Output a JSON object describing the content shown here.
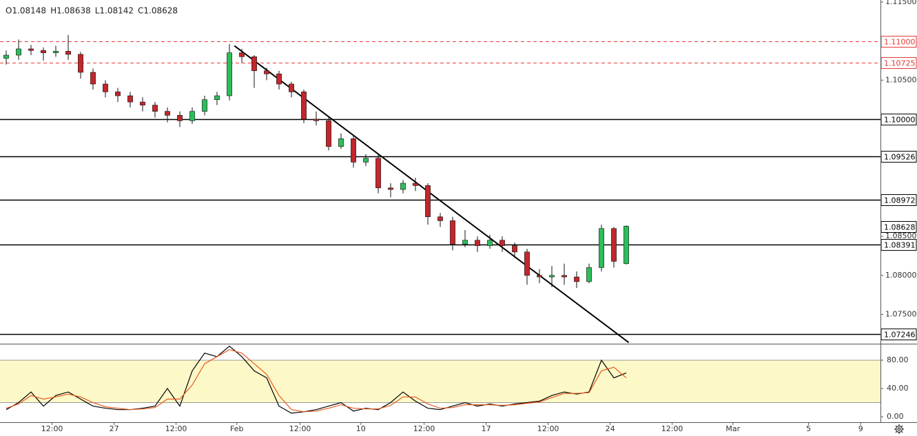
{
  "chart_data": [
    {
      "type": "candlestick",
      "ohlc_labels": [
        "O1.08148",
        "H1.08638",
        "L1.08142",
        "C1.08628"
      ],
      "up_color": "#2ebd5b",
      "down_color": "#c1272d",
      "x": [
        0.5,
        1.5,
        2.5,
        3.5,
        4.5,
        5.5,
        6.5,
        7.5,
        8.5,
        9.5,
        10.5,
        11.5,
        12.5,
        13.5,
        14.5,
        15.5,
        16.5,
        17.5,
        18.5,
        19.5,
        20.5,
        21.5,
        22.5,
        23.5,
        24.5,
        25.5,
        26.5,
        27.5,
        28.5,
        29.5,
        30.5,
        31.5,
        32.5,
        33.5,
        34.5,
        35.5,
        36.5,
        37.5,
        38.5,
        39.5,
        40.5,
        41.5,
        42.5,
        43.5,
        44.5,
        45.5,
        46.5,
        47.5,
        48.5,
        49.5,
        50.5
      ],
      "open": [
        1.1078,
        1.1082,
        1.109,
        1.1088,
        1.1085,
        1.1087,
        1.1083,
        1.106,
        1.1045,
        1.1035,
        1.103,
        1.1022,
        1.1018,
        1.101,
        1.1005,
        1.0998,
        1.101,
        1.1025,
        1.103,
        1.1085,
        1.108,
        1.1062,
        1.1058,
        1.1045,
        1.1035,
        1.1,
        1.0998,
        1.0965,
        1.0975,
        1.0945,
        1.095,
        1.0912,
        1.091,
        1.0918,
        1.0915,
        1.0875,
        1.087,
        1.084,
        1.0845,
        1.0838,
        1.0845,
        1.0838,
        1.083,
        1.08,
        1.0798,
        1.08,
        1.0798,
        1.0792,
        1.081,
        1.086,
        1.0815
      ],
      "high": [
        1.1088,
        1.1102,
        1.1095,
        1.1092,
        1.1094,
        1.1108,
        1.1086,
        1.1065,
        1.105,
        1.104,
        1.1035,
        1.1028,
        1.1022,
        1.1015,
        1.101,
        1.1015,
        1.103,
        1.1035,
        1.1096,
        1.109,
        1.1082,
        1.1066,
        1.1062,
        1.1048,
        1.1038,
        1.101,
        1.1002,
        1.0982,
        1.098,
        1.0955,
        1.0955,
        1.0918,
        1.0922,
        1.0925,
        1.0918,
        1.088,
        1.0875,
        1.0858,
        1.085,
        1.0852,
        1.085,
        1.0842,
        1.0834,
        1.0808,
        1.0812,
        1.0815,
        1.0805,
        1.0815,
        1.0865,
        1.0862,
        1.0864
      ],
      "low": [
        1.107,
        1.1076,
        1.1082,
        1.1075,
        1.108,
        1.1076,
        1.1052,
        1.1038,
        1.1028,
        1.1022,
        1.1015,
        1.101,
        1.1002,
        1.0996,
        1.099,
        1.0994,
        1.1005,
        1.1018,
        1.1024,
        1.1072,
        1.104,
        1.105,
        1.1038,
        1.1028,
        1.0995,
        1.0992,
        1.096,
        1.0962,
        1.0938,
        1.094,
        1.0905,
        1.09,
        1.0905,
        1.0908,
        1.0865,
        1.0862,
        1.0832,
        1.0836,
        1.083,
        1.0834,
        1.083,
        1.0822,
        1.0788,
        1.079,
        1.0785,
        1.0788,
        1.0784,
        1.079,
        1.0805,
        1.081,
        1.0814
      ],
      "close": [
        1.1082,
        1.109,
        1.1088,
        1.1085,
        1.1087,
        1.1083,
        1.106,
        1.1045,
        1.1035,
        1.103,
        1.1022,
        1.1018,
        1.101,
        1.1005,
        1.0998,
        1.101,
        1.1025,
        1.103,
        1.1085,
        1.108,
        1.1062,
        1.1058,
        1.1045,
        1.1035,
        1.1,
        1.0998,
        1.0965,
        1.0975,
        1.0945,
        1.095,
        1.0912,
        1.091,
        1.0918,
        1.0915,
        1.0875,
        1.087,
        1.084,
        1.0845,
        1.0838,
        1.0845,
        1.0838,
        1.083,
        1.08,
        1.0798,
        1.08,
        1.0798,
        1.0792,
        1.081,
        1.086,
        1.0818,
        1.0863
      ],
      "xlim": [
        0,
        71
      ],
      "xticks": [
        {
          "value": 4.2,
          "label": "12:00"
        },
        {
          "value": 9.2,
          "label": "27"
        },
        {
          "value": 14.2,
          "label": "12:00"
        },
        {
          "value": 19.1,
          "label": "Feb"
        },
        {
          "value": 24.2,
          "label": "12:00"
        },
        {
          "value": 29.1,
          "label": "10"
        },
        {
          "value": 34.2,
          "label": "12:00"
        },
        {
          "value": 39.2,
          "label": "17"
        },
        {
          "value": 44.2,
          "label": "12:00"
        },
        {
          "value": 49.2,
          "label": "24"
        },
        {
          "value": 54.2,
          "label": "12:00"
        },
        {
          "value": 59.1,
          "label": "Mar"
        },
        {
          "value": 65.2,
          "label": "5"
        },
        {
          "value": 69.4,
          "label": "9"
        }
      ],
      "ylim": [
        1.07134,
        1.11526
      ],
      "yticks": [
        {
          "value": 1.115,
          "label": "1.11500"
        },
        {
          "value": 1.105,
          "label": "1.10500"
        },
        {
          "value": 1.085,
          "label": "1.08500"
        },
        {
          "value": 1.08,
          "label": "1.08000"
        },
        {
          "value": 1.075,
          "label": "1.07500"
        }
      ],
      "levels": [
        {
          "value": 1.11,
          "label": "1.11000",
          "color": "#e53935",
          "style": "dashed"
        },
        {
          "value": 1.10725,
          "label": "1.10725",
          "color": "#e53935",
          "style": "dashed"
        },
        {
          "value": 1.1,
          "label": "1.10000",
          "color": "#000000",
          "style": "solid"
        },
        {
          "value": 1.09526,
          "label": "1.09526",
          "color": "#000000",
          "style": "solid"
        },
        {
          "value": 1.08972,
          "label": "1.08972",
          "color": "#000000",
          "style": "solid"
        },
        {
          "value": 1.08391,
          "label": "1.08391",
          "color": "#000000",
          "style": "solid"
        },
        {
          "value": 1.07246,
          "label": "1.07246",
          "color": "#000000",
          "style": "solid"
        }
      ],
      "last_price": {
        "value": 1.08628,
        "label": "1.08628"
      },
      "trendline": {
        "x": [
          18.9,
          50.7
        ],
        "y": [
          1.1094,
          1.0714
        ],
        "color": "#000000"
      }
    },
    {
      "type": "stochastic",
      "x": [
        0.5,
        1.5,
        2.5,
        3.5,
        4.5,
        5.5,
        6.5,
        7.5,
        8.5,
        9.5,
        10.5,
        11.5,
        12.5,
        13.5,
        14.5,
        15.5,
        16.5,
        17.5,
        18.5,
        19.5,
        20.5,
        21.5,
        22.5,
        23.5,
        24.5,
        25.5,
        26.5,
        27.5,
        28.5,
        29.5,
        30.5,
        31.5,
        32.5,
        33.5,
        34.5,
        35.5,
        36.5,
        37.5,
        38.5,
        39.5,
        40.5,
        41.5,
        42.5,
        43.5,
        44.5,
        45.5,
        46.5,
        47.5,
        48.5,
        49.5,
        50.5
      ],
      "series": [
        {
          "color": "#000000",
          "values": [
            10,
            20,
            35,
            15,
            30,
            35,
            25,
            15,
            12,
            10,
            10,
            12,
            15,
            40,
            15,
            65,
            90,
            85,
            100,
            85,
            65,
            55,
            15,
            5,
            7,
            10,
            15,
            20,
            8,
            12,
            10,
            20,
            35,
            22,
            12,
            10,
            15,
            20,
            15,
            18,
            15,
            18,
            20,
            22,
            30,
            35,
            32,
            35,
            80,
            55,
            62
          ]
        },
        {
          "color": "#e8581c",
          "values": [
            12,
            18,
            30,
            25,
            28,
            32,
            28,
            20,
            14,
            12,
            10,
            11,
            13,
            25,
            25,
            45,
            75,
            85,
            95,
            90,
            75,
            60,
            30,
            10,
            7,
            8,
            12,
            17,
            12,
            11,
            11,
            16,
            28,
            28,
            18,
            12,
            13,
            17,
            17,
            17,
            16,
            17,
            19,
            21,
            27,
            33,
            33,
            34,
            65,
            70,
            55
          ]
        }
      ],
      "band": [
        20,
        80
      ],
      "band_color": "#fdf8c8",
      "xlim": [
        0,
        71
      ],
      "ylim": [
        -7.8,
        102.4
      ],
      "yticks": [
        {
          "value": 80,
          "label": "80.00"
        },
        {
          "value": 40,
          "label": "40.00"
        },
        {
          "value": 0,
          "label": "0.00"
        }
      ]
    }
  ]
}
